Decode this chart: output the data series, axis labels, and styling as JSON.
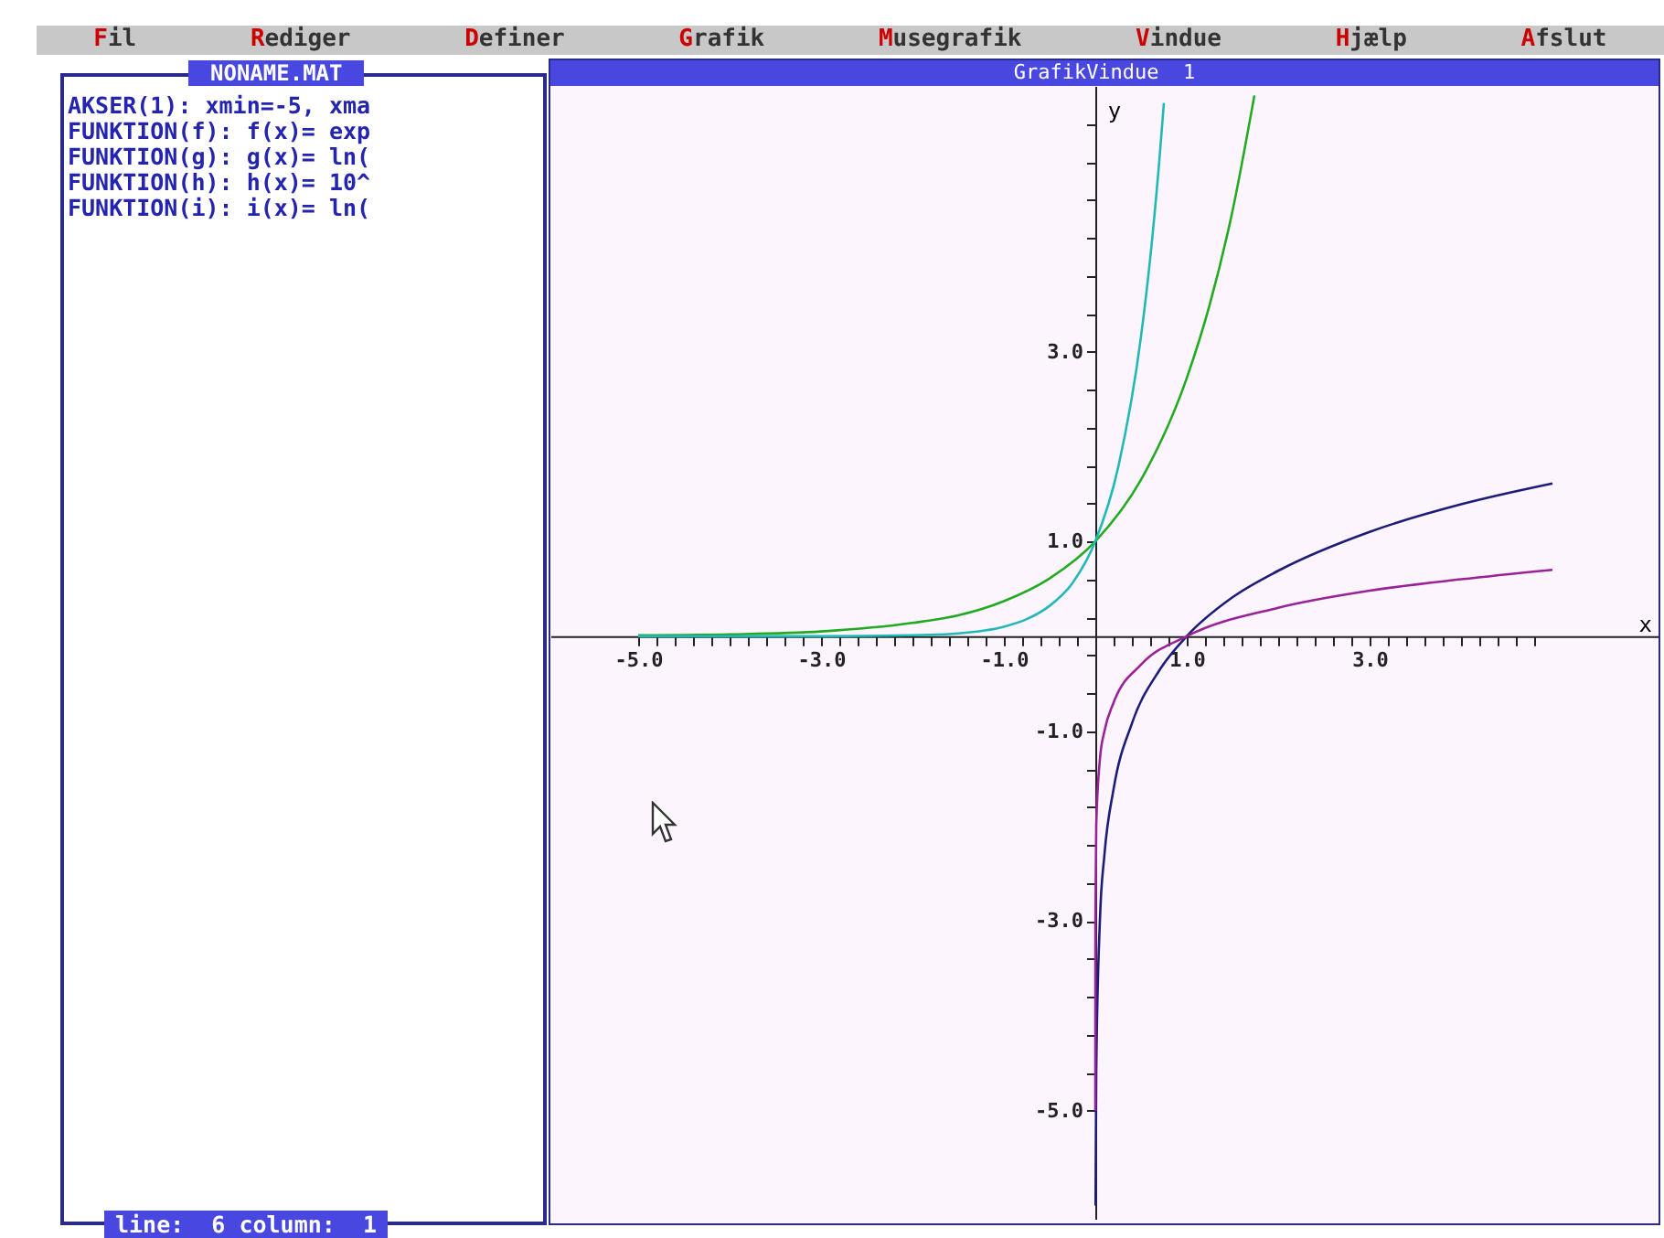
{
  "chart_data": {
    "type": "line",
    "title": "GrafikVindue  1",
    "xlabel": "x",
    "ylabel": "y",
    "annotations": [
      "Fil",
      "Rediger",
      "Definer",
      "Grafik",
      "Musegrafik",
      "Vindue",
      "Hjælp",
      "Afslut",
      "NONAME.MAT",
      "AKSER(1): xmin=-5, xma",
      "FUNKTION(f): f(x)= exp",
      "FUNKTION(g): g(x)= ln(",
      "FUNKTION(h): h(x)= 10^",
      "FUNKTION(i): i(x)= ln(",
      "line:  6 column:  1"
    ],
    "xlim": [
      -5.96,
      6.16
    ],
    "ylim": [
      -6.15,
      5.8
    ],
    "xticks": [
      {
        "value": -5,
        "label": "-5.0"
      },
      {
        "value": -4.8,
        "label": null
      },
      {
        "value": -4.6,
        "label": null
      },
      {
        "value": -4.4,
        "label": null
      },
      {
        "value": -4.2,
        "label": null
      },
      {
        "value": -4,
        "label": null
      },
      {
        "value": -3.8,
        "label": null
      },
      {
        "value": -3.6,
        "label": null
      },
      {
        "value": -3.4,
        "label": null
      },
      {
        "value": -3.2,
        "label": null
      },
      {
        "value": -3,
        "label": "-3.0"
      },
      {
        "value": -2.8,
        "label": null
      },
      {
        "value": -2.6,
        "label": null
      },
      {
        "value": -2.4,
        "label": null
      },
      {
        "value": -2.2,
        "label": null
      },
      {
        "value": -2,
        "label": null
      },
      {
        "value": -1.8,
        "label": null
      },
      {
        "value": -1.6,
        "label": null
      },
      {
        "value": -1.4,
        "label": null
      },
      {
        "value": -1.2,
        "label": null
      },
      {
        "value": -1,
        "label": "-1.0"
      },
      {
        "value": -0.8,
        "label": null
      },
      {
        "value": -0.6,
        "label": null
      },
      {
        "value": -0.4,
        "label": null
      },
      {
        "value": -0.2,
        "label": null
      },
      {
        "value": 0.2,
        "label": null
      },
      {
        "value": 0.4,
        "label": null
      },
      {
        "value": 0.6,
        "label": null
      },
      {
        "value": 0.8,
        "label": null
      },
      {
        "value": 1,
        "label": "1.0"
      },
      {
        "value": 1.2,
        "label": null
      },
      {
        "value": 1.4,
        "label": null
      },
      {
        "value": 1.6,
        "label": null
      },
      {
        "value": 1.8,
        "label": null
      },
      {
        "value": 2,
        "label": null
      },
      {
        "value": 2.2,
        "label": null
      },
      {
        "value": 2.4,
        "label": null
      },
      {
        "value": 2.6,
        "label": null
      },
      {
        "value": 2.8,
        "label": null
      },
      {
        "value": 3,
        "label": "3.0"
      },
      {
        "value": 3.2,
        "label": null
      },
      {
        "value": 3.4,
        "label": null
      },
      {
        "value": 3.6,
        "label": null
      },
      {
        "value": 3.8,
        "label": null
      },
      {
        "value": 4,
        "label": null
      },
      {
        "value": 4.2,
        "label": null
      },
      {
        "value": 4.4,
        "label": null
      },
      {
        "value": 4.6,
        "label": null
      },
      {
        "value": 4.8,
        "label": null
      }
    ],
    "yticks": [
      {
        "value": -5,
        "label": "-5.0"
      },
      {
        "value": -4.6,
        "label": null
      },
      {
        "value": -4.2,
        "label": null
      },
      {
        "value": -3.8,
        "label": null
      },
      {
        "value": -3.4,
        "label": null
      },
      {
        "value": -3,
        "label": "-3.0"
      },
      {
        "value": -2.6,
        "label": null
      },
      {
        "value": -2.2,
        "label": null
      },
      {
        "value": -1.8,
        "label": null
      },
      {
        "value": -1.4,
        "label": null
      },
      {
        "value": -1,
        "label": "-1.0"
      },
      {
        "value": -0.6,
        "label": null
      },
      {
        "value": -0.2,
        "label": null
      },
      {
        "value": 0.2,
        "label": null
      },
      {
        "value": 0.6,
        "label": null
      },
      {
        "value": 1,
        "label": "1.0"
      },
      {
        "value": 1.4,
        "label": null
      },
      {
        "value": 1.8,
        "label": null
      },
      {
        "value": 2.2,
        "label": null
      },
      {
        "value": 2.6,
        "label": null
      },
      {
        "value": 3,
        "label": "3.0"
      },
      {
        "value": 3.4,
        "label": null
      },
      {
        "value": 3.8,
        "label": null
      },
      {
        "value": 4.2,
        "label": null
      },
      {
        "value": 4.6,
        "label": null
      },
      {
        "value": 5,
        "label": null
      },
      {
        "value": 5.4,
        "label": null
      }
    ],
    "grid": false,
    "series": [
      {
        "color": "#22aa22",
        "x": [
          -5,
          -4,
          -3,
          -2,
          -1.5,
          -1,
          -0.5,
          0,
          0.5,
          1,
          1.25,
          1.5,
          1.74
        ],
        "values": [
          0.01,
          0.02,
          0.05,
          0.14,
          0.22,
          0.37,
          0.61,
          1,
          1.65,
          2.72,
          3.49,
          4.48,
          5.7
        ]
      },
      {
        "color": "#22b8b8",
        "x": [
          -5,
          -3,
          -2,
          -1.5,
          -1,
          -0.75,
          -0.5,
          -0.25,
          0,
          0.25,
          0.5,
          0.6,
          0.7,
          0.75
        ],
        "values": [
          0,
          0,
          0.01,
          0.03,
          0.1,
          0.18,
          0.32,
          0.56,
          1,
          1.78,
          3.16,
          3.98,
          5.01,
          5.62
        ]
      },
      {
        "color": "#1c1c7a",
        "x": [
          0.0025,
          0.01,
          0.05,
          0.1,
          0.2,
          0.4,
          0.7,
          1,
          1.5,
          2,
          3,
          4,
          5
        ],
        "values": [
          -6,
          -4.6,
          -3,
          -2.3,
          -1.61,
          -0.92,
          -0.36,
          0,
          0.41,
          0.69,
          1.1,
          1.39,
          1.61
        ]
      },
      {
        "color": "#992299",
        "x": [
          1e-05,
          0.001,
          0.01,
          0.05,
          0.1,
          0.2,
          0.5,
          1,
          2,
          3,
          4,
          5
        ],
        "values": [
          -5,
          -3,
          -2,
          -1.3,
          -1,
          -0.7,
          -0.3,
          0,
          0.3,
          0.48,
          0.6,
          0.7
        ]
      }
    ]
  }
}
